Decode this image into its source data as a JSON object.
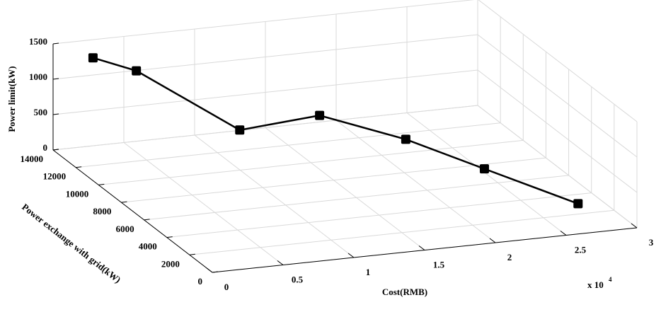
{
  "chart_data": {
    "type": "line3d",
    "x_label": "Cost(RMB)",
    "y_label": "Power exchange with grid(kW)",
    "z_label": "Power limit(kW)",
    "x_multiplier": "x 10",
    "x_multiplier_exponent": "4",
    "xlim": [
      0,
      30000
    ],
    "xticks": [
      {
        "value": 0,
        "label": "0"
      },
      {
        "value": 5000,
        "label": "0.5"
      },
      {
        "value": 10000,
        "label": "1"
      },
      {
        "value": 15000,
        "label": "1.5"
      },
      {
        "value": 20000,
        "label": "2"
      },
      {
        "value": 25000,
        "label": "2.5"
      },
      {
        "value": 30000,
        "label": "3"
      }
    ],
    "ylim": [
      0,
      14000
    ],
    "yticks": [
      0,
      2000,
      4000,
      6000,
      8000,
      10000,
      12000,
      14000
    ],
    "zlim": [
      0,
      1500
    ],
    "zticks": [
      0,
      500,
      1000,
      1500
    ],
    "grid": true,
    "series": [
      {
        "color": "#000000",
        "x": [
          2500,
          5000,
          11500,
          16500,
          20500,
          23000,
          26000
        ],
        "y": [
          13600,
          12900,
          11900,
          11100,
          8500,
          4700,
          200
        ],
        "z": [
          1300,
          1150,
          300,
          500,
          400,
          400,
          400
        ]
      }
    ]
  }
}
